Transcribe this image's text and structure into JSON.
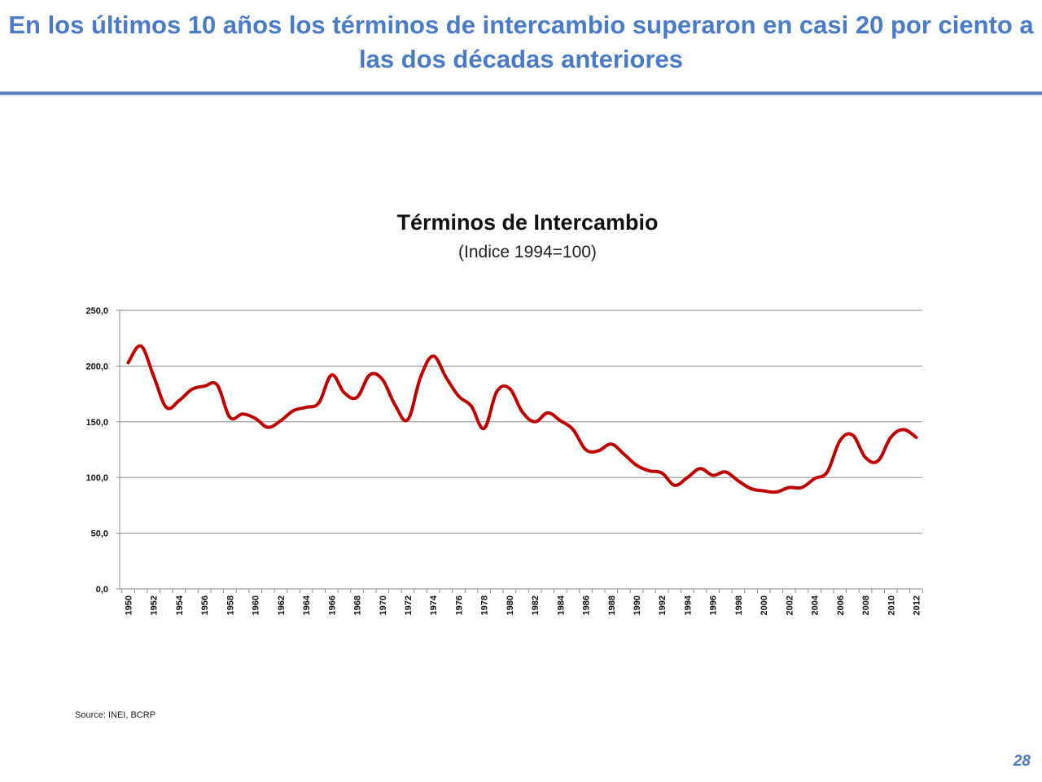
{
  "slide": {
    "title": "En los últimos 10 años los términos de intercambio superaron en casi 20 por ciento a las dos décadas anteriores",
    "page_number": "28",
    "source": "Source: INEI, BCRP",
    "colors": {
      "title": "#4a7bc8",
      "series": "#c00000",
      "grid": "#8c8c8c"
    }
  },
  "chart_data": {
    "type": "line",
    "title": "Términos de Intercambio",
    "subtitle": "(Indice 1994=100)",
    "xlabel": "",
    "ylabel": "",
    "ylim": [
      0,
      250
    ],
    "yticks": [
      "0,0",
      "50,0",
      "100,0",
      "150,0",
      "200,0",
      "250,0"
    ],
    "grid": true,
    "legend": "none",
    "x": [
      1950,
      1951,
      1952,
      1953,
      1954,
      1955,
      1956,
      1957,
      1958,
      1959,
      1960,
      1961,
      1962,
      1963,
      1964,
      1965,
      1966,
      1967,
      1968,
      1969,
      1970,
      1971,
      1972,
      1973,
      1974,
      1975,
      1976,
      1977,
      1978,
      1979,
      1980,
      1981,
      1982,
      1983,
      1984,
      1985,
      1986,
      1987,
      1988,
      1989,
      1990,
      1991,
      1992,
      1993,
      1994,
      1995,
      1996,
      1997,
      1998,
      1999,
      2000,
      2001,
      2002,
      2003,
      2004,
      2005,
      2006,
      2007,
      2008,
      2009,
      2010,
      2011,
      2012
    ],
    "xticks": [
      "1950",
      "1952",
      "1954",
      "1956",
      "1958",
      "1960",
      "1962",
      "1964",
      "1966",
      "1968",
      "1970",
      "1972",
      "1974",
      "1976",
      "1978",
      "1980",
      "1982",
      "1984",
      "1986",
      "1988",
      "1990",
      "1992",
      "1994",
      "1996",
      "1998",
      "2000",
      "2002",
      "2004",
      "2006",
      "2008",
      "2010",
      "2012"
    ],
    "series": [
      {
        "values": [
          203,
          218,
          191,
          163,
          169,
          179,
          182,
          183,
          154,
          157,
          153,
          145,
          151,
          160,
          163,
          167,
          192,
          176,
          172,
          192,
          188,
          165,
          152,
          190,
          209,
          190,
          173,
          164,
          144,
          177,
          180,
          159,
          150,
          158,
          151,
          143,
          125,
          124,
          130,
          121,
          111,
          106,
          104,
          93,
          100,
          108,
          102,
          105,
          97,
          90,
          88,
          87,
          91,
          91,
          99,
          105,
          133,
          138,
          118,
          115,
          136,
          143,
          136
        ]
      }
    ]
  }
}
